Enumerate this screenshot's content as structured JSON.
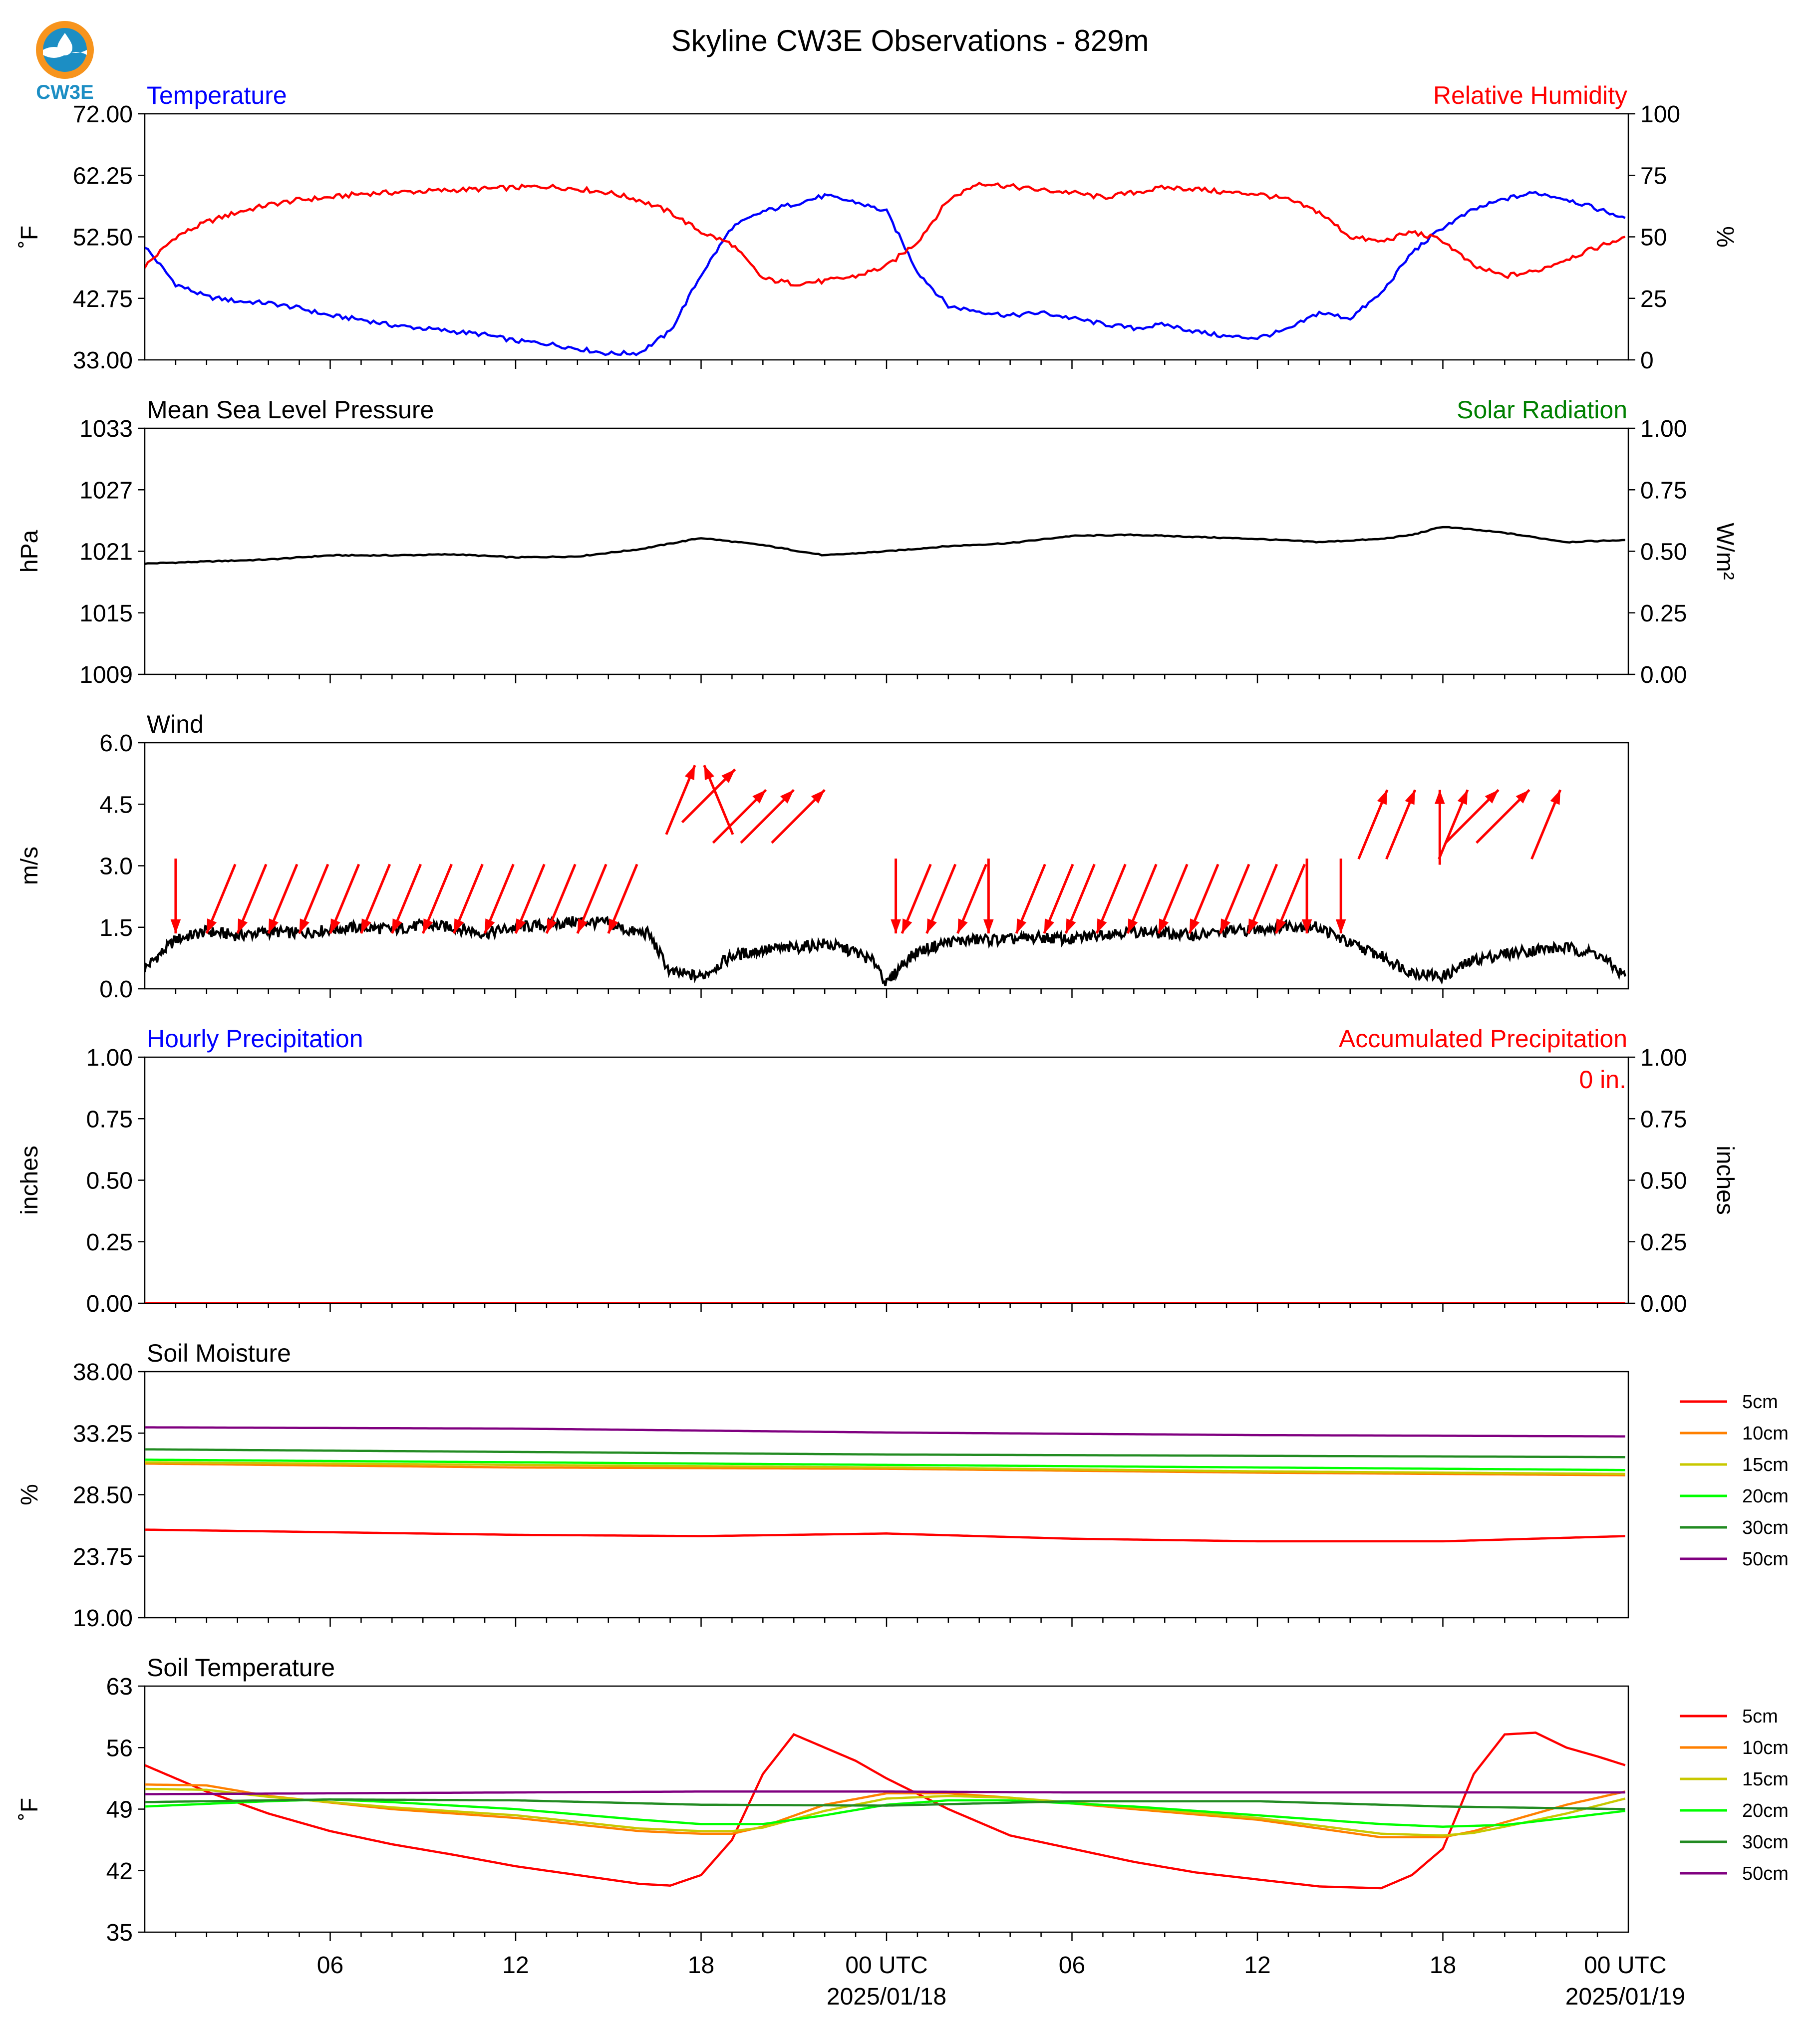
{
  "figure": {
    "title": "Skyline CW3E Observations - 829m",
    "logo_text": "CW3E"
  },
  "x_axis": {
    "tick_labels": [
      "06",
      "12",
      "18",
      "00 UTC",
      "06",
      "12",
      "18",
      "00 UTC"
    ],
    "date_labels": [
      "2025/01/18",
      "2025/01/19"
    ]
  },
  "colors": {
    "temperature": "#0000ff",
    "humidity": "#ff0000",
    "pressure": "#000000",
    "solar": "#008000",
    "wind": "#000000",
    "wind_barb": "#ff0000",
    "hourly_precip": "#0000ff",
    "accum_precip": "#ff0000",
    "depth_5cm": "#ff0000",
    "depth_10cm": "#ff8000",
    "depth_15cm": "#c8c800",
    "depth_20cm": "#00ff00",
    "depth_30cm": "#228b22",
    "depth_50cm": "#800080"
  },
  "chart_data": [
    {
      "type": "line",
      "id": "temp_rh",
      "title_left": "Temperature",
      "title_right": "Relative Humidity",
      "ylabel": "˚F",
      "ylabel_right": "%",
      "ylim": [
        33,
        72
      ],
      "yticks": [
        "72.00",
        "62.25",
        "52.50",
        "42.75",
        "33.00"
      ],
      "ylim_right": [
        0,
        100
      ],
      "yticks_right": [
        "100",
        "75",
        "50",
        "25",
        "0"
      ],
      "series": [
        {
          "axis": "left",
          "color_key": "temperature",
          "x": [
            0,
            1,
            2,
            3,
            4,
            5,
            6,
            7,
            8,
            9,
            10,
            11,
            12,
            13,
            14,
            15,
            16,
            17,
            18,
            19,
            20,
            21,
            22,
            23,
            24,
            25,
            26,
            27,
            28,
            29,
            30,
            31,
            32,
            33,
            34,
            35,
            36,
            37,
            38,
            39,
            40,
            41,
            42,
            43,
            44,
            45,
            46,
            47.9
          ],
          "y": [
            51,
            45,
            43,
            42.3,
            42,
            41.2,
            40,
            39.4,
            38.5,
            38,
            37.5,
            37,
            36,
            35.6,
            34.8,
            34,
            34.1,
            37.5,
            46.5,
            54,
            56.5,
            57.7,
            59,
            58,
            56.5,
            47,
            41.5,
            40.7,
            40,
            40.5,
            39.6,
            38.7,
            38,
            38.6,
            37.5,
            36.7,
            36.5,
            37.8,
            40.5,
            39.6,
            43.5,
            50,
            54,
            56.8,
            58.5,
            59.5,
            58.5,
            55.5
          ]
        },
        {
          "axis": "right",
          "color_key": "humidity",
          "x": [
            0,
            1,
            2,
            3,
            4,
            5,
            6,
            7,
            8,
            9,
            10,
            11,
            12,
            13,
            14,
            15,
            16,
            17,
            18,
            19,
            20,
            21,
            22,
            23,
            24,
            25,
            26,
            27,
            28,
            29,
            30,
            31,
            32,
            33,
            34,
            35,
            36,
            37,
            38,
            39,
            40,
            41,
            42,
            43,
            44,
            45,
            46,
            47.9
          ],
          "y": [
            38,
            50,
            56,
            60,
            63,
            65,
            66,
            67.5,
            68,
            68.5,
            69,
            69.5,
            70,
            70.5,
            69.5,
            68,
            65,
            60,
            52,
            47,
            33,
            31,
            32,
            34,
            38,
            48,
            65,
            72,
            70.5,
            69,
            68,
            66,
            68,
            70,
            69.5,
            68,
            67.5,
            65,
            60,
            50,
            48,
            52,
            48.5,
            38,
            34,
            36,
            41,
            50
          ]
        }
      ]
    },
    {
      "type": "line",
      "id": "pressure",
      "title_left": "Mean Sea Level Pressure",
      "title_right": "Solar Radiation",
      "ylabel": "hPa",
      "ylabel_right": "W/m²",
      "ylim": [
        1009,
        1033
      ],
      "yticks": [
        "1033",
        "1027",
        "1021",
        "1015",
        "1009"
      ],
      "ylim_right": [
        0,
        1
      ],
      "yticks_right": [
        "1.00",
        "0.75",
        "0.50",
        "0.25",
        "0.00"
      ],
      "series": [
        {
          "axis": "left",
          "color_key": "pressure",
          "x": [
            0,
            2,
            4,
            6,
            8,
            10,
            12,
            14,
            16,
            18,
            20,
            22,
            24,
            26,
            28,
            30,
            32,
            34,
            36,
            38,
            40,
            41,
            42,
            44,
            46,
            47.9
          ],
          "y": [
            1019.8,
            1020,
            1020.2,
            1020.6,
            1020.6,
            1020.7,
            1020.4,
            1020.5,
            1021.2,
            1022.3,
            1021.6,
            1020.6,
            1021,
            1021.5,
            1021.8,
            1022.5,
            1022.6,
            1022.4,
            1022.2,
            1021.9,
            1022.2,
            1022.6,
            1023.4,
            1022.8,
            1021.9,
            1022.1
          ]
        }
      ]
    },
    {
      "type": "line",
      "id": "wind",
      "title_left": "Wind",
      "ylabel": "m/s",
      "ylim": [
        0,
        6
      ],
      "yticks": [
        "6.0",
        "4.5",
        "3.0",
        "1.5",
        "0.0"
      ],
      "series": [
        {
          "axis": "left",
          "color_key": "wind",
          "x": [
            0,
            1,
            2,
            3,
            4,
            5,
            6,
            7,
            8,
            9,
            10,
            11,
            12,
            13,
            14,
            15,
            15.7,
            16.3,
            17,
            18,
            19,
            20,
            21,
            22,
            23,
            23.7,
            24,
            24.5,
            25,
            26,
            27,
            28,
            29,
            30,
            31,
            32,
            33,
            34,
            35,
            36,
            37,
            38,
            39,
            40,
            41,
            42,
            43,
            44,
            45,
            46,
            47,
            47.9
          ],
          "y": [
            0.5,
            1.2,
            1.4,
            1.3,
            1.4,
            1.35,
            1.45,
            1.5,
            1.45,
            1.55,
            1.5,
            1.35,
            1.5,
            1.55,
            1.65,
            1.6,
            1.4,
            1.35,
            0.4,
            0.3,
            0.8,
            0.95,
            1.0,
            1.1,
            0.9,
            0.6,
            0.1,
            0.6,
            0.9,
            1.15,
            1.2,
            1.2,
            1.25,
            1.2,
            1.35,
            1.4,
            1.35,
            1.3,
            1.4,
            1.45,
            1.55,
            1.5,
            1.1,
            0.8,
            0.4,
            0.3,
            0.7,
            0.85,
            0.95,
            1.0,
            0.85,
            0.3
          ]
        }
      ],
      "barbs": {
        "x": [
          1,
          2,
          3,
          4,
          5,
          6,
          7,
          8,
          9,
          10,
          11,
          12,
          13,
          14,
          15,
          17.8,
          18.1,
          19.1,
          20.1,
          21,
          22,
          24.3,
          24.5,
          25.3,
          26.3,
          27.3,
          28.2,
          29.1,
          29.8,
          30.8,
          31.8,
          32.8,
          33.8,
          34.8,
          35.7,
          36.6,
          37.6,
          38.7,
          40.2,
          41.1,
          41.9,
          42.8,
          43.8,
          44.8,
          45.8
        ],
        "speed": [
          3.3,
          3.5,
          3.4,
          3.4,
          3.4,
          3.4,
          3.4,
          3.4,
          3.4,
          3.4,
          3.4,
          3.4,
          3.4,
          3.4,
          3.4,
          4.0,
          4.0,
          3.9,
          3.4,
          3.4,
          3.4,
          3.6,
          3.6,
          3.4,
          3.4,
          3.4,
          3.4,
          3.4,
          3.4,
          3.4,
          3.4,
          3.4,
          3.4,
          3.4,
          3.4,
          3.4,
          3.4,
          3.4,
          3.4,
          3.4,
          3.4,
          3.4,
          3.4,
          3.4,
          3.4
        ],
        "direction": [
          "N",
          "NNE",
          "NNE",
          "NNE",
          "NNE",
          "NNE",
          "NNE",
          "NNE",
          "NNE",
          "NNE",
          "NNE",
          "NNE",
          "NNE",
          "NNE",
          "NNE",
          "SSW",
          "SSE",
          "SW",
          "SW",
          "SW",
          "SW",
          "N",
          "NNE",
          "NNE",
          "NNE",
          "N",
          "NNE",
          "NNE",
          "NNE",
          "NNE",
          "NNE",
          "NNE",
          "NNE",
          "NNE",
          "NNE",
          "NNE",
          "N",
          "N",
          "SSW",
          "SSW",
          "S",
          "SSW",
          "SW",
          "SW",
          "SSW"
        ]
      }
    },
    {
      "type": "line",
      "id": "precip",
      "title_left": "Hourly Precipitation",
      "title_right": "Accumulated Precipitation",
      "annotation": "0 in.",
      "ylabel": "inches",
      "ylabel_right": "inches",
      "ylim": [
        0,
        1
      ],
      "yticks": [
        "1.00",
        "0.75",
        "0.50",
        "0.25",
        "0.00"
      ],
      "ylim_right": [
        0,
        1
      ],
      "yticks_right": [
        "1.00",
        "0.75",
        "0.50",
        "0.25",
        "0.00"
      ],
      "series": [
        {
          "axis": "left",
          "color_key": "hourly_precip",
          "x": [
            0,
            47.9
          ],
          "y": [
            0,
            0
          ]
        },
        {
          "axis": "right",
          "color_key": "accum_precip",
          "x": [
            0,
            47.9
          ],
          "y": [
            0,
            0
          ]
        }
      ]
    },
    {
      "type": "line",
      "id": "soil_moisture",
      "title_left": "Soil Moisture",
      "ylabel": "%",
      "ylim": [
        19,
        38
      ],
      "yticks": [
        "38.00",
        "33.25",
        "28.50",
        "23.75",
        "19.00"
      ],
      "legend": [
        "5cm",
        "10cm",
        "15cm",
        "20cm",
        "30cm",
        "50cm"
      ],
      "series": [
        {
          "name": "5cm",
          "color_key": "depth_5cm",
          "x": [
            0,
            6,
            12,
            18,
            24,
            30,
            36,
            42,
            47.9
          ],
          "y": [
            25.8,
            25.6,
            25.4,
            25.3,
            25.5,
            25.1,
            24.9,
            24.9,
            25.3
          ]
        },
        {
          "name": "10cm",
          "color_key": "depth_10cm",
          "x": [
            0,
            12,
            24,
            36,
            47.9
          ],
          "y": [
            30.9,
            30.6,
            30.5,
            30.2,
            30
          ]
        },
        {
          "name": "15cm",
          "color_key": "depth_15cm",
          "x": [
            0,
            12,
            24,
            36,
            47.9
          ],
          "y": [
            31.0,
            30.8,
            30.6,
            30.3,
            30.1
          ]
        },
        {
          "name": "20cm",
          "color_key": "depth_20cm",
          "x": [
            0,
            12,
            24,
            36,
            47.9
          ],
          "y": [
            31.2,
            31.0,
            30.8,
            30.6,
            30.4
          ]
        },
        {
          "name": "30cm",
          "color_key": "depth_30cm",
          "x": [
            0,
            12,
            24,
            36,
            47.9
          ],
          "y": [
            32.0,
            31.8,
            31.6,
            31.5,
            31.4
          ]
        },
        {
          "name": "50cm",
          "color_key": "depth_50cm",
          "x": [
            0,
            12,
            24,
            36,
            47.9
          ],
          "y": [
            33.7,
            33.6,
            33.3,
            33.1,
            33.0
          ]
        }
      ]
    },
    {
      "type": "line",
      "id": "soil_temp",
      "title_left": "Soil Temperature",
      "ylabel": "˚F",
      "ylim": [
        35,
        63
      ],
      "yticks": [
        "63",
        "56",
        "49",
        "42",
        "35"
      ],
      "legend": [
        "5cm",
        "10cm",
        "15cm",
        "20cm",
        "30cm",
        "50cm"
      ],
      "series": [
        {
          "name": "5cm",
          "color_key": "depth_5cm",
          "x": [
            0,
            2,
            4,
            6,
            8,
            10,
            12,
            14,
            16,
            17,
            18,
            19,
            20,
            21,
            22,
            23,
            24,
            26,
            28,
            30,
            32,
            34,
            36,
            38,
            40,
            41,
            42,
            43,
            44,
            45,
            46,
            47,
            47.9
          ],
          "y": [
            54,
            51,
            48.5,
            46.5,
            45,
            43.8,
            42.5,
            41.5,
            40.5,
            40.3,
            41.5,
            45.5,
            53,
            57.5,
            56,
            54.5,
            52.5,
            49,
            46,
            44.5,
            43,
            41.8,
            41,
            40.2,
            40,
            41.5,
            44.5,
            53,
            57.5,
            57.7,
            56,
            55,
            54
          ]
        },
        {
          "name": "10cm",
          "color_key": "depth_10cm",
          "x": [
            0,
            2,
            4,
            8,
            12,
            16,
            18,
            19,
            20,
            22,
            24,
            26,
            28,
            32,
            36,
            40,
            42,
            43,
            44,
            46,
            47.9
          ],
          "y": [
            51.8,
            51.7,
            50.5,
            49,
            48,
            46.5,
            46.2,
            46.2,
            47,
            49.5,
            50.8,
            50.8,
            50.3,
            49,
            47.8,
            45.8,
            45.8,
            46.5,
            47.5,
            49.5,
            51
          ]
        },
        {
          "name": "15cm",
          "color_key": "depth_15cm",
          "x": [
            0,
            2,
            4,
            8,
            12,
            16,
            18,
            19,
            20,
            22,
            24,
            26,
            28,
            32,
            36,
            40,
            42,
            43,
            44,
            46,
            47.9
          ],
          "y": [
            51.3,
            51.2,
            50.4,
            49.2,
            48.3,
            46.8,
            46.5,
            46.5,
            46.9,
            48.8,
            50.2,
            50.5,
            50.3,
            49.2,
            48,
            46.2,
            46,
            46.3,
            47,
            48.5,
            50.2
          ]
        },
        {
          "name": "20cm",
          "color_key": "depth_20cm",
          "x": [
            0,
            2,
            4,
            6,
            8,
            12,
            16,
            18,
            20,
            22,
            24,
            26,
            28,
            32,
            36,
            40,
            42,
            44,
            46,
            47.9
          ],
          "y": [
            49.3,
            49.6,
            49.9,
            50.1,
            49.8,
            49,
            47.8,
            47.3,
            47.3,
            48.3,
            49.5,
            50,
            50,
            49.3,
            48.3,
            47.3,
            47,
            47.2,
            48,
            48.8
          ]
        },
        {
          "name": "30cm",
          "color_key": "depth_30cm",
          "x": [
            0,
            6,
            12,
            18,
            24,
            30,
            36,
            42,
            47.9
          ],
          "y": [
            49.8,
            50.1,
            50,
            49.5,
            49.4,
            49.9,
            49.9,
            49.3,
            49
          ]
        },
        {
          "name": "50cm",
          "color_key": "depth_50cm",
          "x": [
            0,
            6,
            12,
            18,
            24,
            30,
            36,
            42,
            47.9
          ],
          "y": [
            50.7,
            50.8,
            50.9,
            51,
            51,
            50.9,
            50.9,
            50.9,
            50.9
          ]
        }
      ]
    }
  ]
}
